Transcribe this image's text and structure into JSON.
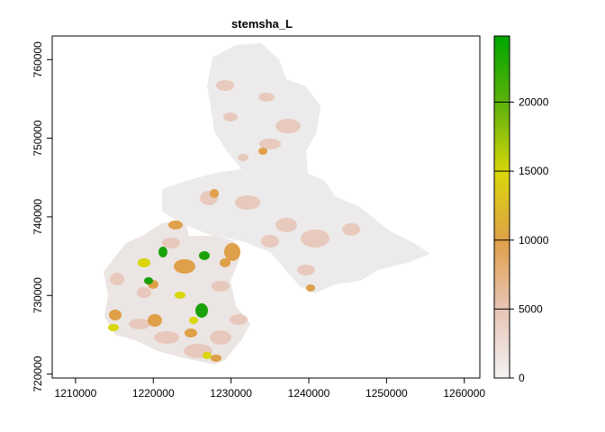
{
  "map": {
    "title": "stemsha_L",
    "x_ticks": [
      "1210000",
      "1220000",
      "1230000",
      "1240000",
      "1250000",
      "1260000"
    ],
    "y_ticks": [
      "720000",
      "730000",
      "740000",
      "750000",
      "760000"
    ]
  },
  "legend": {
    "labels": [
      "0",
      "5000",
      "10000",
      "15000",
      "20000"
    ],
    "colors": [
      "#f2f2f2",
      "#e8c4b6",
      "#e3a986",
      "#dfa049",
      "#d9d60a",
      "#a8c70c",
      "#5fb20b",
      "#1aa10a",
      "#00a600"
    ]
  },
  "chart_data": {
    "type": "heatmap",
    "title": "stemsha_L",
    "xlim": [
      1207000,
      1262000
    ],
    "ylim": [
      719500,
      763000
    ],
    "value_range": [
      0,
      24800
    ],
    "x_ticks": [
      1210000,
      1220000,
      1230000,
      1240000,
      1250000,
      1260000
    ],
    "y_ticks": [
      720000,
      730000,
      740000,
      750000,
      760000
    ],
    "legend_ticks": [
      0,
      5000,
      10000,
      15000,
      20000
    ],
    "legend_placement": "right"
  }
}
